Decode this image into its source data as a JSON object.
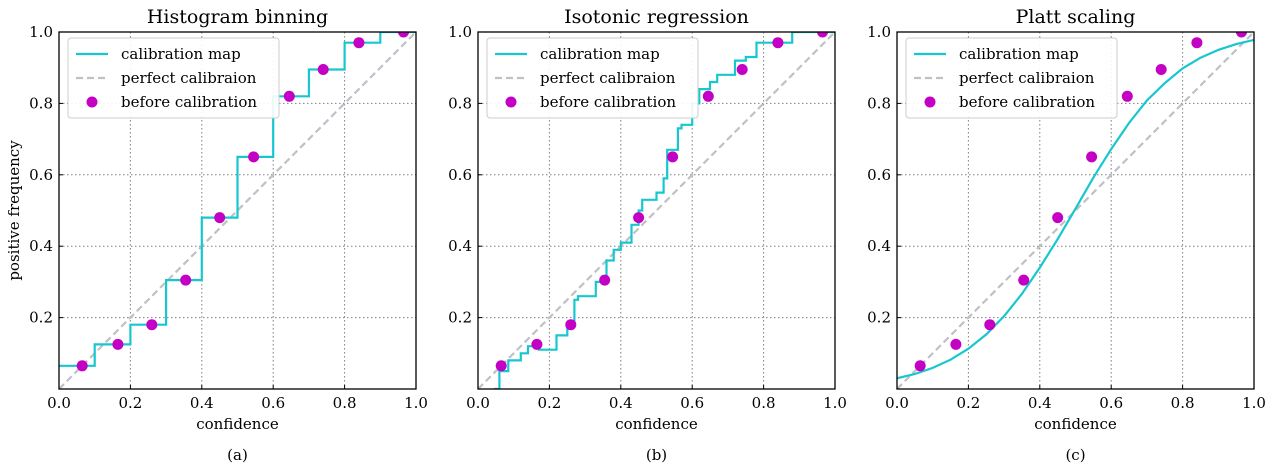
{
  "figure": {
    "colors": {
      "calibration_map": "#17c7cf",
      "perfect": "#c0c0c8",
      "before": "#c400c4",
      "grid": "#808080",
      "axes": "#000000"
    }
  },
  "chart_data": [
    {
      "type": "line",
      "title": "Histogram binning",
      "caption": "(a)",
      "xlabel": "confidence",
      "ylabel": "positive frequency",
      "xlim": [
        0,
        1
      ],
      "ylim": [
        0,
        1
      ],
      "xticks": [
        "0.0",
        "0.2",
        "0.4",
        "0.6",
        "0.8",
        "1.0"
      ],
      "yticks": [
        "0.2",
        "0.4",
        "0.6",
        "0.8",
        "1.0"
      ],
      "grid": true,
      "legend_position": "top-left",
      "legend": [
        "calibration map",
        "perfect calibraion",
        "before calibration"
      ],
      "series": [
        {
          "name": "calibration map",
          "kind": "line",
          "x": [
            0.0,
            0.1,
            0.1,
            0.2,
            0.2,
            0.3,
            0.3,
            0.4,
            0.4,
            0.5,
            0.5,
            0.6,
            0.6,
            0.7,
            0.7,
            0.8,
            0.8,
            0.9,
            0.9,
            1.0
          ],
          "y": [
            0.065,
            0.065,
            0.125,
            0.125,
            0.18,
            0.18,
            0.305,
            0.305,
            0.48,
            0.48,
            0.65,
            0.65,
            0.82,
            0.82,
            0.895,
            0.895,
            0.97,
            0.97,
            1.0,
            1.0
          ]
        },
        {
          "name": "perfect calibraion",
          "kind": "dashed",
          "x": [
            0,
            1
          ],
          "y": [
            0,
            1
          ]
        },
        {
          "name": "before calibration",
          "kind": "scatter",
          "x": [
            0.065,
            0.165,
            0.26,
            0.355,
            0.45,
            0.545,
            0.645,
            0.74,
            0.84,
            0.965
          ],
          "y": [
            0.065,
            0.125,
            0.18,
            0.305,
            0.48,
            0.65,
            0.82,
            0.895,
            0.97,
            1.0
          ]
        }
      ]
    },
    {
      "type": "line",
      "title": "Isotonic regression",
      "caption": "(b)",
      "xlabel": "confidence",
      "ylabel": "",
      "xlim": [
        0,
        1
      ],
      "ylim": [
        0,
        1
      ],
      "xticks": [
        "0.0",
        "0.2",
        "0.4",
        "0.6",
        "0.8",
        "1.0"
      ],
      "yticks": [
        "0.2",
        "0.4",
        "0.6",
        "0.8",
        "1.0"
      ],
      "grid": true,
      "legend_position": "top-left",
      "legend": [
        "calibration map",
        "perfect calibraion",
        "before calibration"
      ],
      "series": [
        {
          "name": "calibration map",
          "kind": "line",
          "x": [
            0.045,
            0.06,
            0.06,
            0.085,
            0.085,
            0.12,
            0.12,
            0.14,
            0.14,
            0.17,
            0.17,
            0.22,
            0.22,
            0.25,
            0.25,
            0.27,
            0.27,
            0.28,
            0.28,
            0.33,
            0.33,
            0.36,
            0.36,
            0.38,
            0.38,
            0.4,
            0.4,
            0.43,
            0.43,
            0.45,
            0.45,
            0.46,
            0.46,
            0.5,
            0.5,
            0.52,
            0.52,
            0.53,
            0.53,
            0.56,
            0.56,
            0.57,
            0.57,
            0.6,
            0.6,
            0.62,
            0.62,
            0.65,
            0.65,
            0.67,
            0.67,
            0.72,
            0.72,
            0.75,
            0.75,
            0.78,
            0.78,
            0.88,
            0.88,
            1.0
          ],
          "y": [
            0.0,
            0.0,
            0.05,
            0.05,
            0.08,
            0.08,
            0.1,
            0.1,
            0.12,
            0.12,
            0.11,
            0.11,
            0.15,
            0.15,
            0.18,
            0.18,
            0.25,
            0.25,
            0.26,
            0.26,
            0.3,
            0.3,
            0.36,
            0.36,
            0.39,
            0.39,
            0.41,
            0.41,
            0.46,
            0.46,
            0.5,
            0.5,
            0.53,
            0.53,
            0.55,
            0.55,
            0.59,
            0.59,
            0.67,
            0.67,
            0.73,
            0.73,
            0.74,
            0.74,
            0.8,
            0.8,
            0.84,
            0.84,
            0.86,
            0.86,
            0.88,
            0.88,
            0.92,
            0.92,
            0.93,
            0.93,
            0.97,
            0.97,
            1.0,
            1.0
          ]
        },
        {
          "name": "perfect calibraion",
          "kind": "dashed",
          "x": [
            0,
            1
          ],
          "y": [
            0,
            1
          ]
        },
        {
          "name": "before calibration",
          "kind": "scatter",
          "x": [
            0.065,
            0.165,
            0.26,
            0.355,
            0.45,
            0.545,
            0.645,
            0.74,
            0.84,
            0.965
          ],
          "y": [
            0.065,
            0.125,
            0.18,
            0.305,
            0.48,
            0.65,
            0.82,
            0.895,
            0.97,
            1.0
          ]
        }
      ]
    },
    {
      "type": "line",
      "title": "Platt scaling",
      "caption": "(c)",
      "xlabel": "confidence",
      "ylabel": "",
      "xlim": [
        0,
        1
      ],
      "ylim": [
        0,
        1
      ],
      "xticks": [
        "0.0",
        "0.2",
        "0.4",
        "0.6",
        "0.8",
        "1.0"
      ],
      "yticks": [
        "0.2",
        "0.4",
        "0.6",
        "0.8",
        "1.0"
      ],
      "grid": true,
      "legend_position": "top-left",
      "legend": [
        "calibration map",
        "perfect calibraion",
        "before calibration"
      ],
      "series": [
        {
          "name": "calibration map",
          "kind": "line",
          "x": [
            0.0,
            0.05,
            0.1,
            0.15,
            0.2,
            0.25,
            0.3,
            0.35,
            0.4,
            0.45,
            0.5,
            0.55,
            0.6,
            0.65,
            0.7,
            0.75,
            0.8,
            0.85,
            0.9,
            0.95,
            1.0
          ],
          "y": [
            0.03,
            0.042,
            0.059,
            0.082,
            0.113,
            0.153,
            0.204,
            0.267,
            0.34,
            0.42,
            0.505,
            0.592,
            0.672,
            0.745,
            0.808,
            0.857,
            0.898,
            0.928,
            0.95,
            0.966,
            0.978
          ]
        },
        {
          "name": "perfect calibraion",
          "kind": "dashed",
          "x": [
            0,
            1
          ],
          "y": [
            0,
            1
          ]
        },
        {
          "name": "before calibration",
          "kind": "scatter",
          "x": [
            0.065,
            0.165,
            0.26,
            0.355,
            0.45,
            0.545,
            0.645,
            0.74,
            0.84,
            0.965
          ],
          "y": [
            0.065,
            0.125,
            0.18,
            0.305,
            0.48,
            0.65,
            0.82,
            0.895,
            0.97,
            1.0
          ]
        }
      ]
    }
  ]
}
